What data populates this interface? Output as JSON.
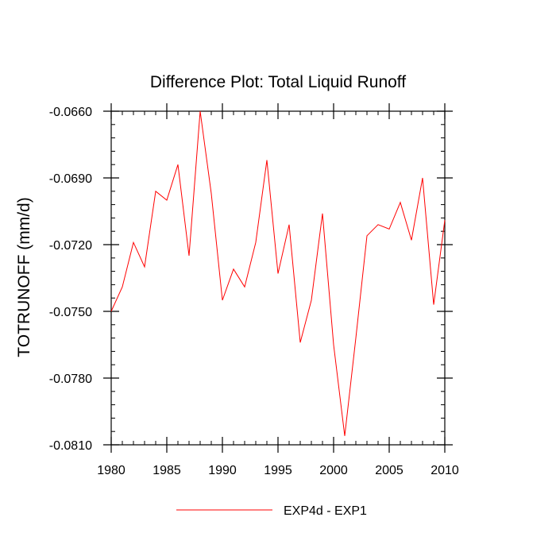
{
  "chart_data": {
    "type": "line",
    "title": "Difference Plot: Total Liquid Runoff",
    "xlabel": "",
    "ylabel": "TOTRUNOFF  (mm/d)",
    "xlim": [
      1980,
      2010
    ],
    "ylim": [
      -0.081,
      -0.066
    ],
    "xticks": [
      1980,
      1985,
      1990,
      1995,
      2000,
      2005,
      2010
    ],
    "xtick_labels": [
      "1980",
      "1985",
      "1990",
      "1995",
      "2000",
      "2005",
      "2010"
    ],
    "yticks": [
      -0.066,
      -0.069,
      -0.072,
      -0.075,
      -0.078,
      -0.081
    ],
    "ytick_labels": [
      "-0.0660",
      "-0.0690",
      "-0.0720",
      "-0.0750",
      "-0.0780",
      "-0.0810"
    ],
    "x_minor_step": 1,
    "y_minor_step": 0.0006,
    "grid": false,
    "legend_position": "bottom-center",
    "series": [
      {
        "name": "EXP4d - EXP1",
        "color": "#ff0000",
        "x": [
          1980,
          1981,
          1982,
          1983,
          1984,
          1985,
          1986,
          1987,
          1988,
          1989,
          1990,
          1991,
          1992,
          1993,
          1994,
          1995,
          1996,
          1997,
          1998,
          1999,
          2000,
          2001,
          2002,
          2003,
          2004,
          2005,
          2006,
          2007,
          2008,
          2009,
          2010
        ],
        "values": [
          -0.075,
          -0.0739,
          -0.0719,
          -0.073,
          -0.0696,
          -0.07,
          -0.0684,
          -0.0725,
          -0.066,
          -0.0697,
          -0.0745,
          -0.0731,
          -0.0739,
          -0.0719,
          -0.0682,
          -0.0733,
          -0.0711,
          -0.0764,
          -0.0745,
          -0.0706,
          -0.0765,
          -0.0806,
          -0.0762,
          -0.0716,
          -0.0711,
          -0.0713,
          -0.0701,
          -0.0718,
          -0.069,
          -0.0747,
          -0.0709
        ]
      }
    ]
  }
}
